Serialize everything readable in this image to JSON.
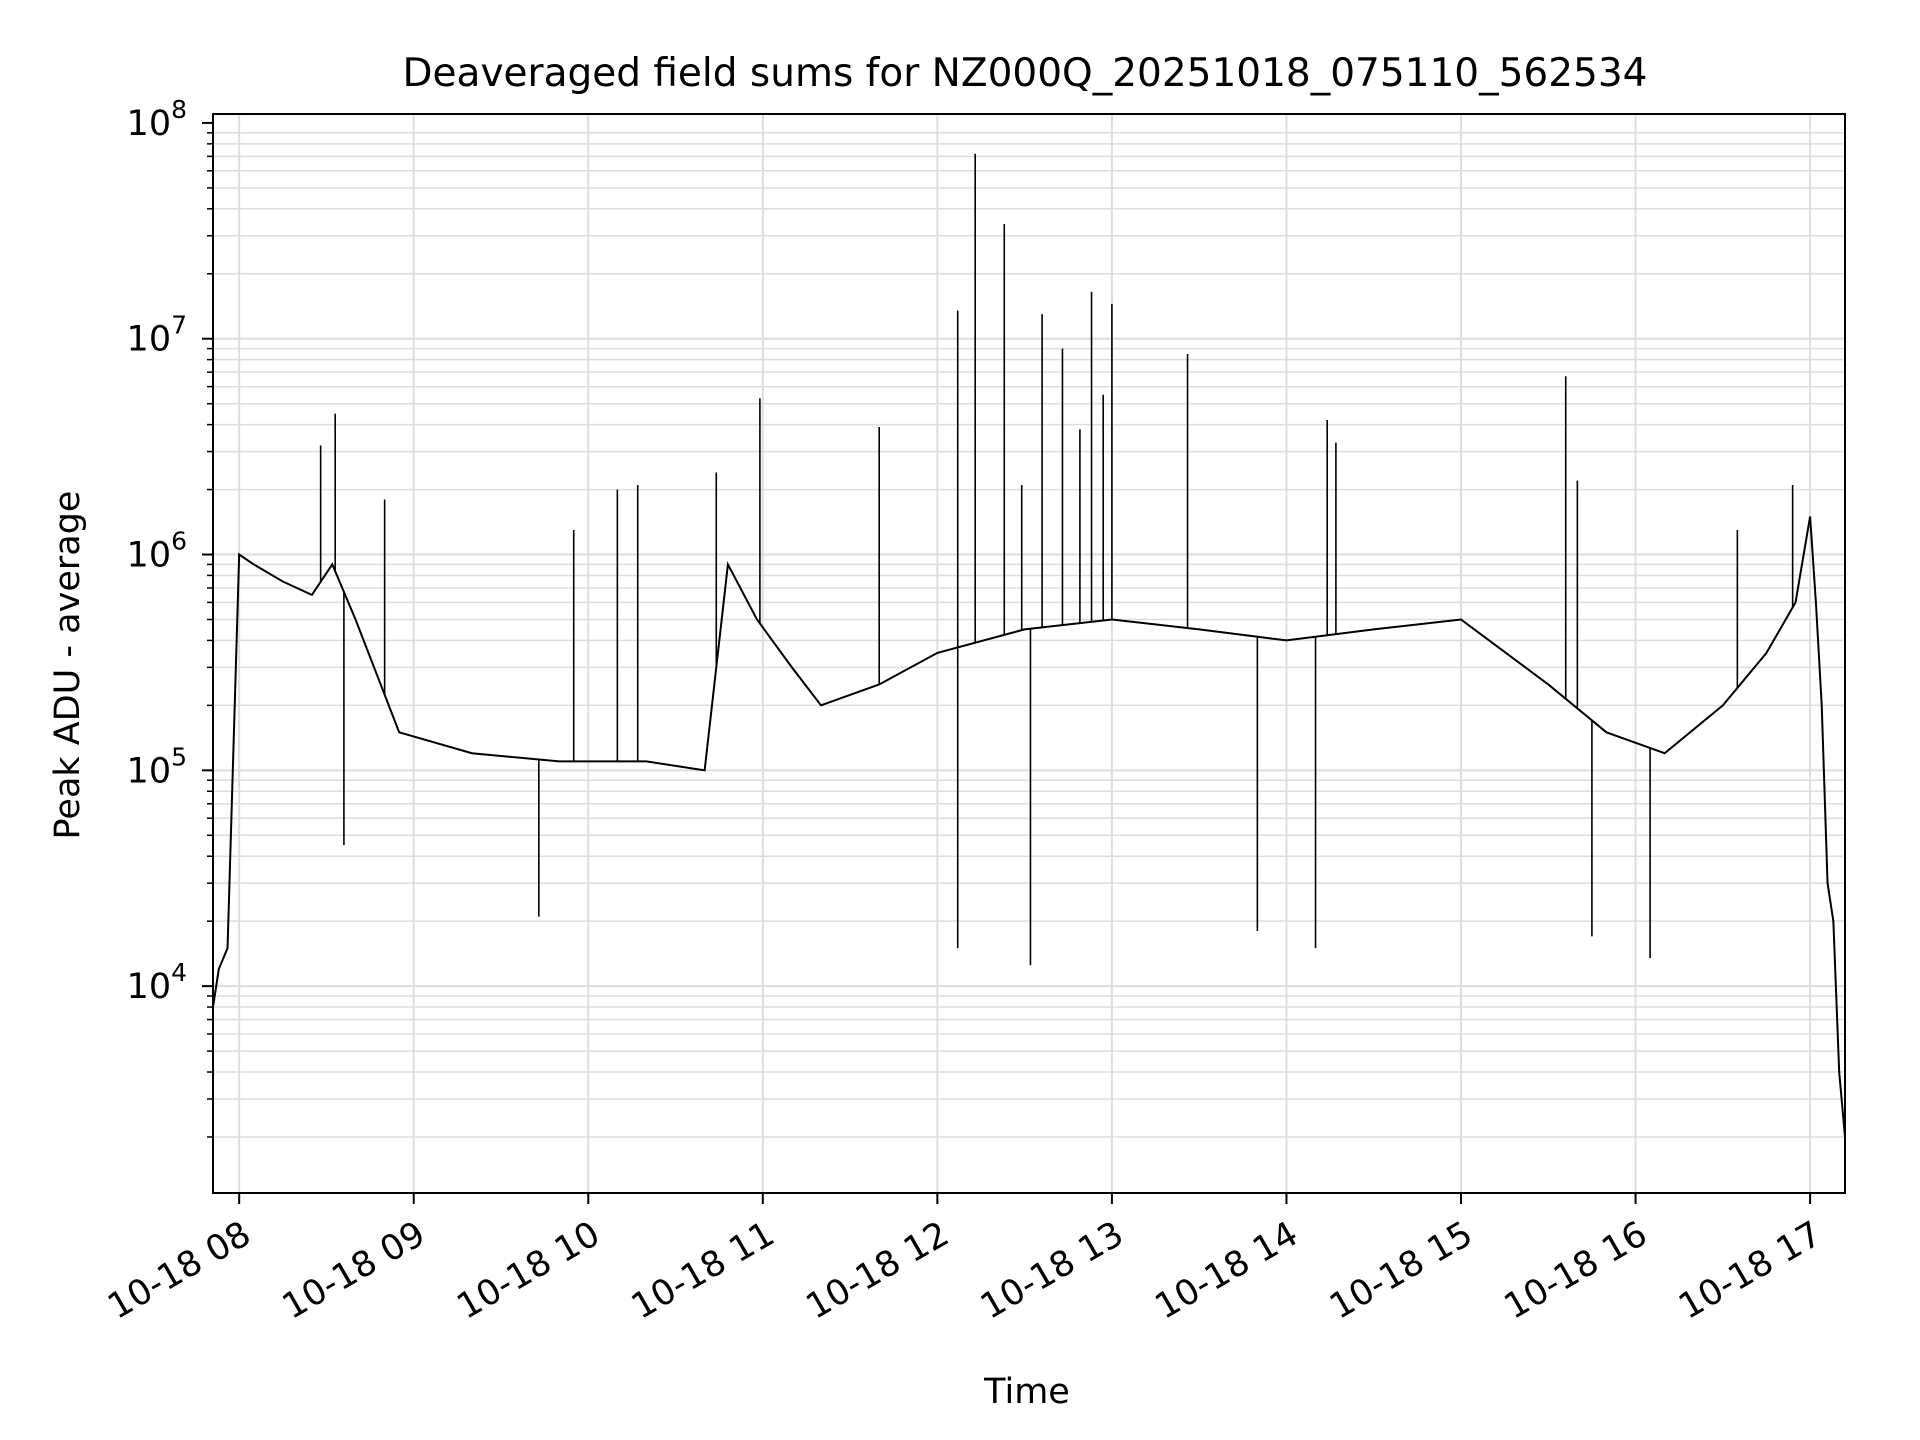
{
  "chart_data": {
    "type": "line",
    "title": "Deaveraged field sums for NZ000Q_20251018_075110_562534",
    "xlabel": "Time",
    "ylabel": "Peak ADU - average",
    "x_ticks": [
      "10-18 08",
      "10-18 09",
      "10-18 10",
      "10-18 11",
      "10-18 12",
      "10-18 13",
      "10-18 14",
      "10-18 15",
      "10-18 16",
      "10-18 17"
    ],
    "y_ticks": [
      {
        "base": "10",
        "exp": "4",
        "value": 10000
      },
      {
        "base": "10",
        "exp": "5",
        "value": 100000
      },
      {
        "base": "10",
        "exp": "6",
        "value": 1000000
      },
      {
        "base": "10",
        "exp": "7",
        "value": 10000000
      },
      {
        "base": "10",
        "exp": "8",
        "value": 100000000
      }
    ],
    "xlim": [
      "2025-10-18 07:51",
      "2025-10-18 17:12"
    ],
    "ylim": [
      1100,
      110000000
    ],
    "yscale": "log",
    "grid": true,
    "line_color": "#000000",
    "grid_color": "#dddddd",
    "series": [
      {
        "x": [
          "2025-10-18 07:51",
          "2025-10-18 07:53",
          "2025-10-18 07:56",
          "2025-10-18 08:00",
          "2025-10-18 08:05",
          "2025-10-18 08:15",
          "2025-10-18 08:25",
          "2025-10-18 08:32",
          "2025-10-18 08:40",
          "2025-10-18 08:55",
          "2025-10-18 09:20",
          "2025-10-18 09:50",
          "2025-10-18 10:20",
          "2025-10-18 10:40",
          "2025-10-18 10:48",
          "2025-10-18 10:58",
          "2025-10-18 11:10",
          "2025-10-18 11:20",
          "2025-10-18 11:40",
          "2025-10-18 12:00",
          "2025-10-18 12:30",
          "2025-10-18 13:00",
          "2025-10-18 13:30",
          "2025-10-18 14:00",
          "2025-10-18 14:30",
          "2025-10-18 15:00",
          "2025-10-18 15:30",
          "2025-10-18 15:50",
          "2025-10-18 16:10",
          "2025-10-18 16:30",
          "2025-10-18 16:45",
          "2025-10-18 16:55",
          "2025-10-18 17:00",
          "2025-10-18 17:02",
          "2025-10-18 17:04",
          "2025-10-18 17:06",
          "2025-10-18 17:08",
          "2025-10-18 17:10",
          "2025-10-18 17:12"
        ],
        "y": [
          8000,
          12000,
          15000,
          1000000,
          900000,
          750000,
          650000,
          900000,
          500000,
          150000,
          120000,
          110000,
          110000,
          100000,
          900000,
          500000,
          300000,
          200000,
          250000,
          350000,
          450000,
          500000,
          450000,
          400000,
          450000,
          500000,
          250000,
          150000,
          120000,
          200000,
          350000,
          600000,
          1500000,
          600000,
          200000,
          30000,
          20000,
          4000,
          2000
        ],
        "peaks": [
          {
            "x": "2025-10-18 08:28",
            "y": 3200000
          },
          {
            "x": "2025-10-18 08:33",
            "y": 4500000
          },
          {
            "x": "2025-10-18 08:50",
            "y": 1800000
          },
          {
            "x": "2025-10-18 09:55",
            "y": 1300000
          },
          {
            "x": "2025-10-18 10:10",
            "y": 2000000
          },
          {
            "x": "2025-10-18 10:17",
            "y": 2100000
          },
          {
            "x": "2025-10-18 10:44",
            "y": 2400000
          },
          {
            "x": "2025-10-18 10:59",
            "y": 5300000
          },
          {
            "x": "2025-10-18 11:40",
            "y": 3900000
          },
          {
            "x": "2025-10-18 12:07",
            "y": 13500000
          },
          {
            "x": "2025-10-18 12:13",
            "y": 72000000
          },
          {
            "x": "2025-10-18 12:23",
            "y": 34000000
          },
          {
            "x": "2025-10-18 12:29",
            "y": 2100000
          },
          {
            "x": "2025-10-18 12:36",
            "y": 13000000
          },
          {
            "x": "2025-10-18 12:43",
            "y": 9000000
          },
          {
            "x": "2025-10-18 12:49",
            "y": 3800000
          },
          {
            "x": "2025-10-18 12:53",
            "y": 16500000
          },
          {
            "x": "2025-10-18 12:57",
            "y": 5500000
          },
          {
            "x": "2025-10-18 13:00",
            "y": 14500000
          },
          {
            "x": "2025-10-18 13:26",
            "y": 8500000
          },
          {
            "x": "2025-10-18 14:14",
            "y": 4200000
          },
          {
            "x": "2025-10-18 14:17",
            "y": 3300000
          },
          {
            "x": "2025-10-18 15:36",
            "y": 6700000
          },
          {
            "x": "2025-10-18 15:40",
            "y": 2200000
          },
          {
            "x": "2025-10-18 16:35",
            "y": 1300000
          },
          {
            "x": "2025-10-18 16:54",
            "y": 2100000
          }
        ],
        "troughs": [
          {
            "x": "2025-10-18 08:36",
            "y": 45000
          },
          {
            "x": "2025-10-18 09:43",
            "y": 21000
          },
          {
            "x": "2025-10-18 12:07",
            "y": 15000
          },
          {
            "x": "2025-10-18 12:32",
            "y": 12500
          },
          {
            "x": "2025-10-18 13:50",
            "y": 18000
          },
          {
            "x": "2025-10-18 14:10",
            "y": 15000
          },
          {
            "x": "2025-10-18 15:45",
            "y": 17000
          },
          {
            "x": "2025-10-18 16:05",
            "y": 13500
          }
        ]
      }
    ]
  }
}
